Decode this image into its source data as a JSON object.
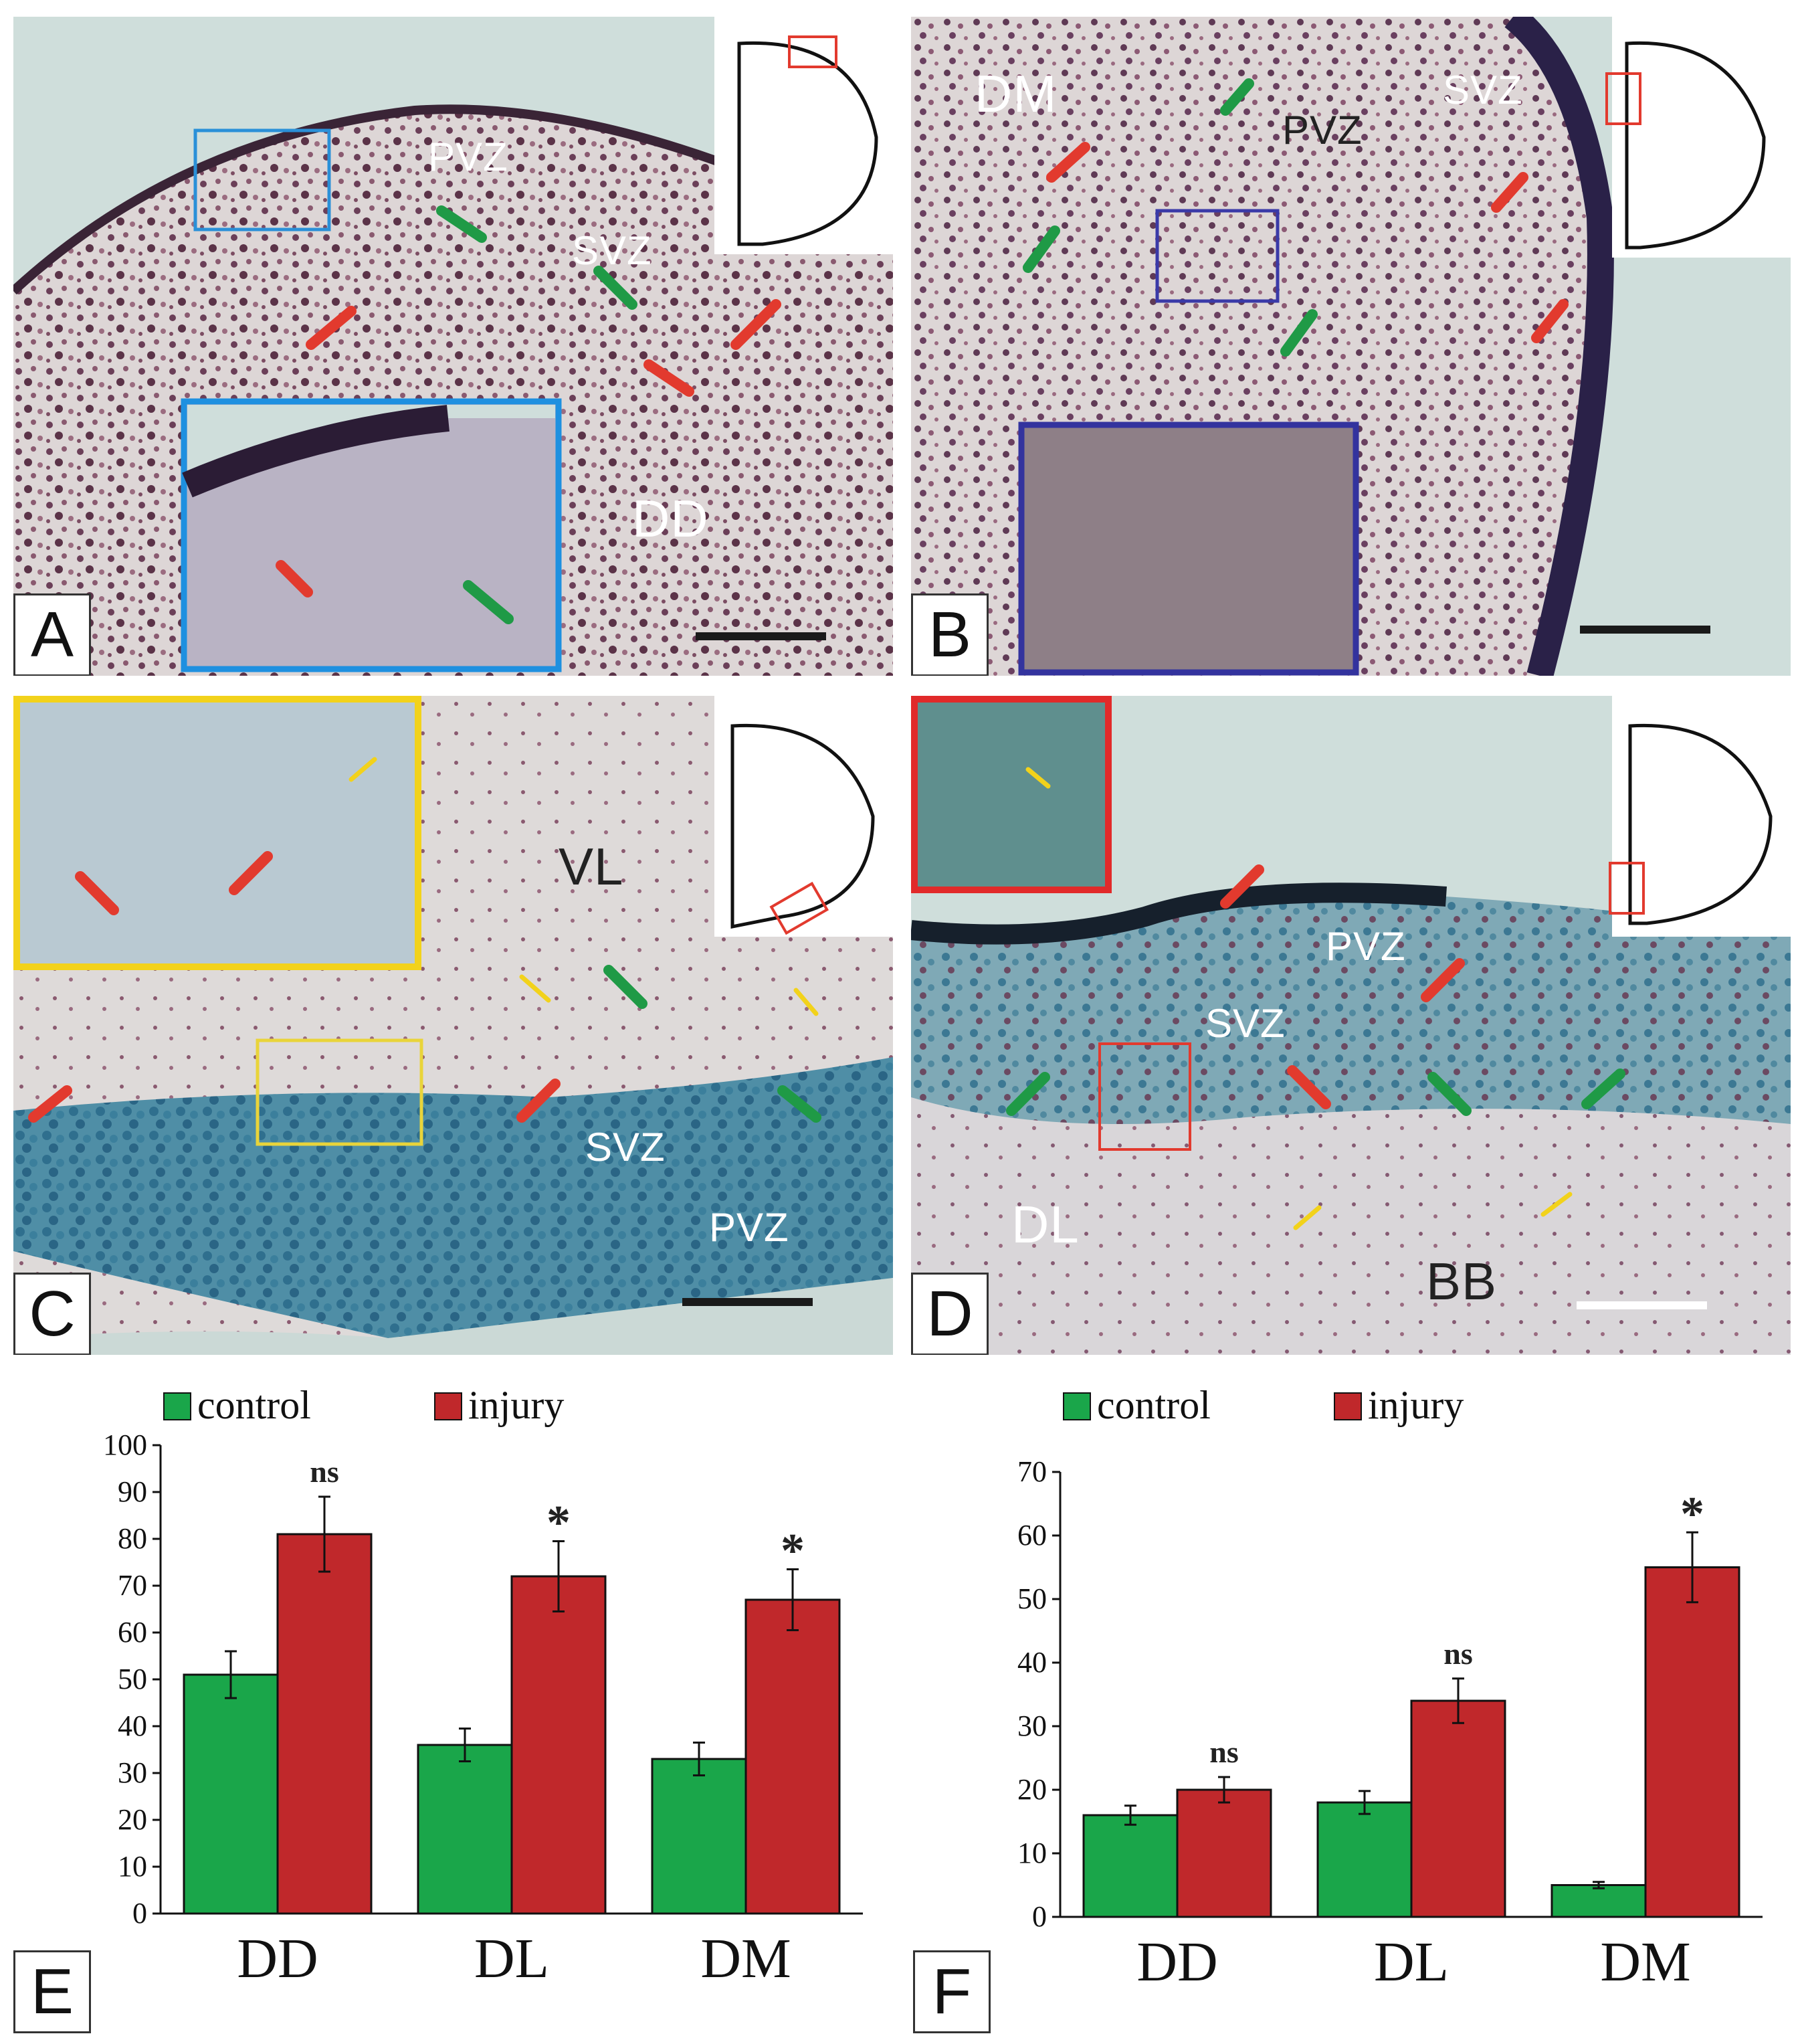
{
  "panels": [
    {
      "letter": "A",
      "labels": [
        "PVZ",
        "SVZ",
        "DD"
      ]
    },
    {
      "letter": "B",
      "labels": [
        "DM",
        "PVZ",
        "SVZ"
      ]
    },
    {
      "letter": "C",
      "labels": [
        "VL",
        "SVZ",
        "PVZ"
      ]
    },
    {
      "letter": "D",
      "labels": [
        "PVZ",
        "SVZ",
        "DL",
        "BB"
      ]
    }
  ],
  "chart_panels": [
    {
      "letter": "E"
    },
    {
      "letter": "F"
    }
  ],
  "colors": {
    "control": "#1aa64a",
    "injury": "#c0282b"
  },
  "chart_data": [
    {
      "type": "bar",
      "categories": [
        "DD",
        "DL",
        "DM"
      ],
      "series": [
        {
          "name": "control",
          "values": [
            51,
            36,
            33
          ],
          "errors": [
            5,
            3.5,
            3.5
          ]
        },
        {
          "name": "injury",
          "values": [
            81,
            72,
            67
          ],
          "errors": [
            8,
            7.5,
            6.5
          ]
        }
      ],
      "annotations": [
        "ns",
        "*",
        "*"
      ],
      "ylim": [
        0,
        100
      ],
      "yticks": [
        "0",
        "10",
        "20",
        "30",
        "40",
        "50",
        "60",
        "70",
        "80",
        "90",
        "100"
      ],
      "legend": "top-left"
    },
    {
      "type": "bar",
      "categories": [
        "DD",
        "DL",
        "DM"
      ],
      "series": [
        {
          "name": "control",
          "values": [
            16,
            18,
            5
          ],
          "errors": [
            1.5,
            1.8,
            0.5
          ]
        },
        {
          "name": "injury",
          "values": [
            20,
            34,
            55
          ],
          "errors": [
            2,
            3.5,
            5.5
          ]
        }
      ],
      "annotations": [
        "ns",
        "ns",
        "*"
      ],
      "ylim": [
        0,
        70
      ],
      "yticks": [
        "0",
        "10",
        "20",
        "30",
        "40",
        "50",
        "60",
        "70"
      ],
      "legend": "top-left"
    }
  ]
}
